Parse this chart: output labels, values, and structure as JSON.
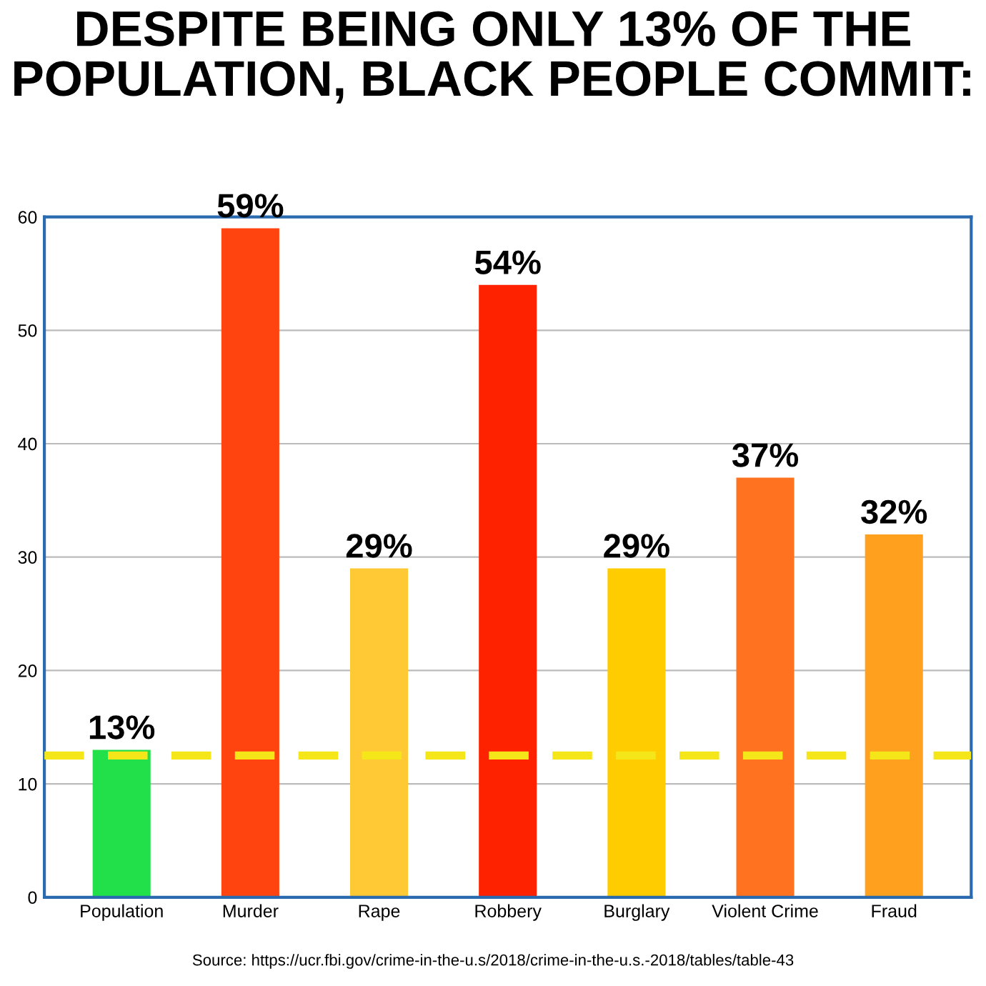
{
  "chart_data": {
    "type": "bar",
    "title": "DESPITE BEING ONLY 13% OF THE POPULATION, BLACK PEOPLE COMMIT:",
    "categories": [
      "Population",
      "Murder",
      "Rape",
      "Robbery",
      "Burglary",
      "Violent Crime",
      "Fraud"
    ],
    "values": [
      13,
      59,
      29,
      54,
      29,
      37,
      32
    ],
    "value_labels": [
      "13%",
      "59%",
      "29%",
      "54%",
      "29%",
      "37%",
      "32%"
    ],
    "colors": [
      "#22e04a",
      "#ff4410",
      "#ffc835",
      "#ff2200",
      "#ffcc00",
      "#ff7220",
      "#ffa01e"
    ],
    "ylim": [
      0,
      60
    ],
    "yticks": [
      0,
      10,
      20,
      30,
      40,
      50,
      60
    ],
    "grid": "y",
    "ref_lines": [
      {
        "axis": "y",
        "value": 12.5,
        "color": "#f5e61a",
        "line_style": "dashed"
      }
    ],
    "annotations": [
      "Source: https://ucr.fbi.gov/crime-in-the-u.s/2018/crime-in-the-u.s.-2018/tables/table-43"
    ]
  }
}
